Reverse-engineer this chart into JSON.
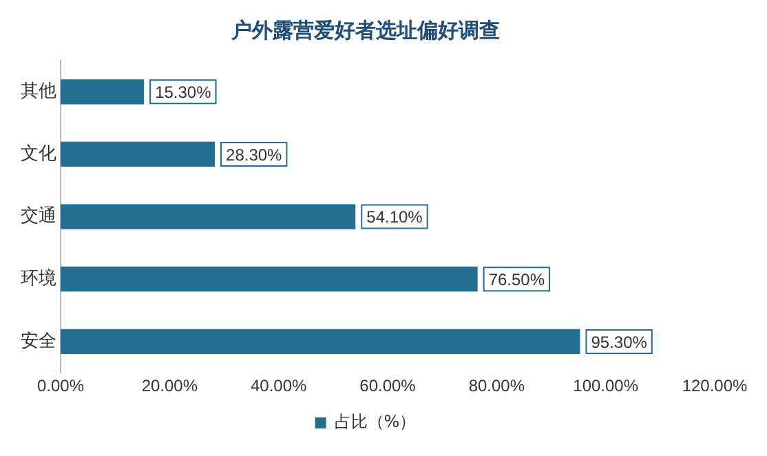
{
  "chart_data": {
    "type": "bar",
    "orientation": "horizontal",
    "title": "户外露营爱好者选址偏好调查",
    "categories": [
      "其他",
      "文化",
      "交通",
      "环境",
      "安全"
    ],
    "series": [
      {
        "name": "占比（%）",
        "color": "#236e91",
        "values": [
          15.3,
          28.3,
          54.1,
          76.5,
          95.3
        ],
        "value_labels": [
          "15.30%",
          "28.30%",
          "54.10%",
          "76.50%",
          "95.30%"
        ]
      }
    ],
    "xlim": [
      0,
      120
    ],
    "xticks": [
      {
        "value": 0,
        "label": "0.00%"
      },
      {
        "value": 20,
        "label": "20.00%"
      },
      {
        "value": 40,
        "label": "40.00%"
      },
      {
        "value": 60,
        "label": "60.00%"
      },
      {
        "value": 80,
        "label": "80.00%"
      },
      {
        "value": 100,
        "label": "100.00%"
      },
      {
        "value": 120,
        "label": "120.00%"
      }
    ],
    "grid": false,
    "legend": "bottom"
  }
}
